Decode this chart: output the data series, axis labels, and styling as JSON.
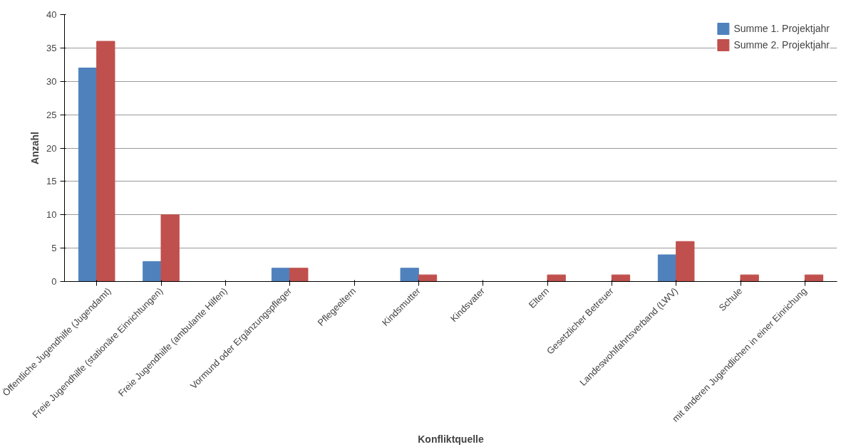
{
  "chart_data": {
    "type": "bar",
    "xlabel": "Konfliktquelle",
    "ylabel": "Anzahl",
    "categories": [
      "Öffentliche Jugendhilfe (Jugendamt)",
      "Freie Jugendhilfe (stationäre Einrichtungen)",
      "Freie Jugendhilfe (ambulante Hilfen)",
      "Vormund oder Ergänzungspfleger",
      "Pflegeeltern",
      "Kindsmutter",
      "Kindsvater",
      "Eltern",
      "Gesetzlicher Betreuer",
      "Landeswohlfahrtsverband (LWV)",
      "Schule",
      "mit anderen Jugendlichen in einer Einrichung"
    ],
    "series": [
      {
        "name": "Summe 1. Projektjahr",
        "color": "#4f81bd",
        "values": [
          32,
          3,
          0,
          2,
          0,
          2,
          0,
          0,
          0,
          4,
          0,
          0
        ]
      },
      {
        "name": "Summe 2. Projektjahr",
        "color": "#c0504d",
        "values": [
          36,
          10,
          0,
          2,
          0,
          1,
          0,
          1,
          1,
          6,
          1,
          1
        ]
      }
    ],
    "ylim": [
      0,
      40
    ],
    "yticks": [
      0,
      5,
      10,
      15,
      20,
      25,
      30,
      35,
      40
    ],
    "grid": "y",
    "legend": "top right"
  }
}
